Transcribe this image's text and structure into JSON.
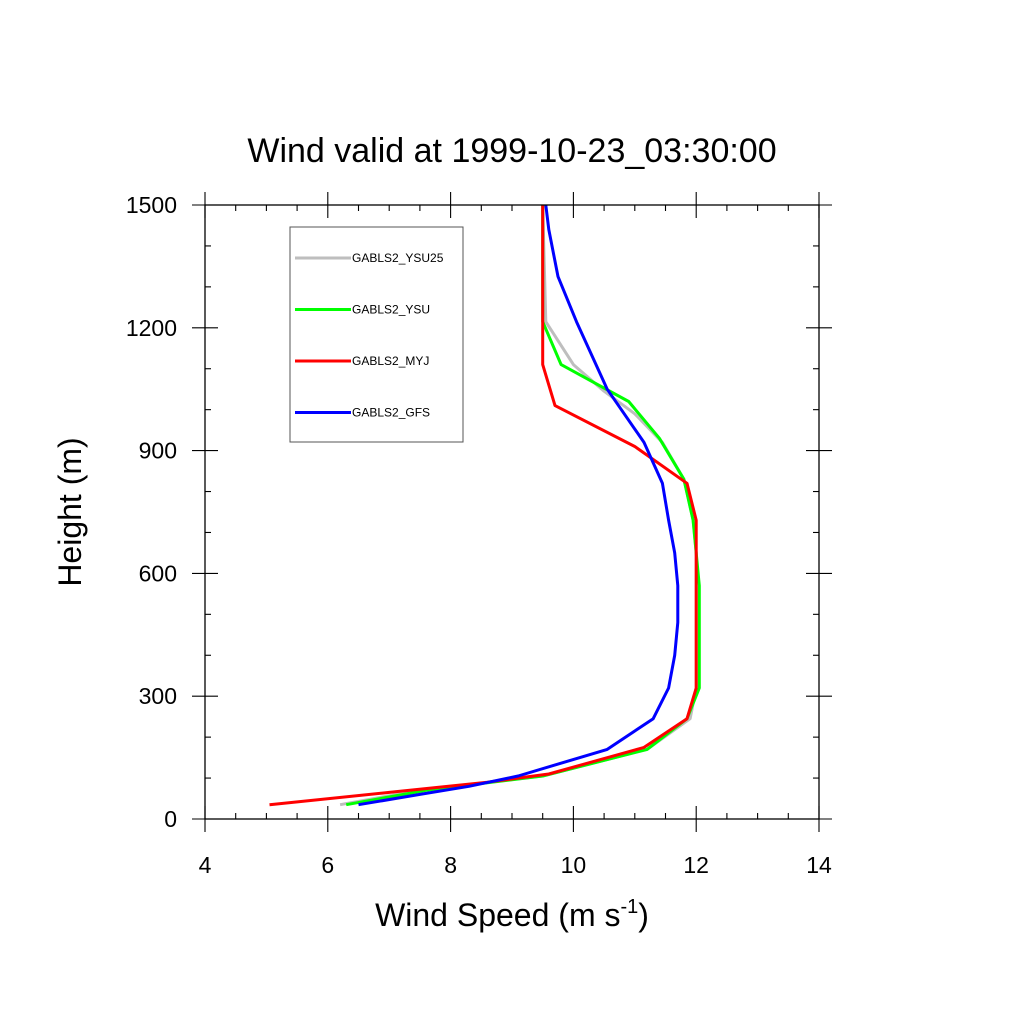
{
  "chart_data": {
    "type": "line",
    "title": "Wind valid at 1999-10-23_03:30:00",
    "xlabel": "Wind Speed (m s",
    "xlabel_sup": "-1",
    "xlabel_end": ")",
    "ylabel": "Height (m)",
    "xlim": [
      4,
      14
    ],
    "ylim": [
      0,
      1500
    ],
    "x_ticks": [
      4,
      6,
      8,
      10,
      12,
      14
    ],
    "y_ticks": [
      0,
      300,
      600,
      900,
      1200,
      1500
    ],
    "x_tick_labels": [
      "4",
      "6",
      "8",
      "10",
      "12",
      "14"
    ],
    "y_tick_labels": [
      "0",
      "300",
      "600",
      "900",
      "1200",
      "1500"
    ],
    "grid": false,
    "legend_position": "top-left",
    "series": [
      {
        "name": "GABLS2_YSU25",
        "color": "#bebebe",
        "points": [
          [
            6.2,
            35
          ],
          [
            7.5,
            70
          ],
          [
            9.5,
            105
          ],
          [
            11.2,
            170
          ],
          [
            11.9,
            245
          ],
          [
            12.0,
            320
          ],
          [
            12.0,
            400
          ],
          [
            12.0,
            480
          ],
          [
            12.0,
            570
          ],
          [
            12.0,
            650
          ],
          [
            11.95,
            730
          ],
          [
            11.8,
            830
          ],
          [
            11.45,
            920
          ],
          [
            11.0,
            990
          ],
          [
            10.5,
            1045
          ],
          [
            10.0,
            1110
          ],
          [
            9.55,
            1215
          ],
          [
            9.5,
            1500
          ]
        ]
      },
      {
        "name": "GABLS2_YSU",
        "color": "#00ff00",
        "points": [
          [
            6.3,
            35
          ],
          [
            7.6,
            70
          ],
          [
            9.5,
            105
          ],
          [
            11.2,
            170
          ],
          [
            11.85,
            245
          ],
          [
            12.05,
            320
          ],
          [
            12.05,
            400
          ],
          [
            12.05,
            480
          ],
          [
            12.05,
            570
          ],
          [
            12.0,
            650
          ],
          [
            11.95,
            730
          ],
          [
            11.8,
            830
          ],
          [
            11.4,
            930
          ],
          [
            10.9,
            1020
          ],
          [
            9.8,
            1110
          ],
          [
            9.5,
            1215
          ],
          [
            9.5,
            1500
          ]
        ]
      },
      {
        "name": "GABLS2_MYJ",
        "color": "#ff0000",
        "points": [
          [
            5.05,
            35
          ],
          [
            7.0,
            65
          ],
          [
            8.6,
            90
          ],
          [
            9.6,
            110
          ],
          [
            11.15,
            175
          ],
          [
            11.85,
            245
          ],
          [
            12.0,
            320
          ],
          [
            12.0,
            400
          ],
          [
            12.0,
            480
          ],
          [
            12.0,
            570
          ],
          [
            12.0,
            650
          ],
          [
            12.0,
            730
          ],
          [
            11.85,
            820
          ],
          [
            11.0,
            910
          ],
          [
            9.7,
            1010
          ],
          [
            9.5,
            1110
          ],
          [
            9.5,
            1500
          ]
        ]
      },
      {
        "name": "GABLS2_GFS",
        "color": "#0000ff",
        "points": [
          [
            6.5,
            35
          ],
          [
            7.5,
            60
          ],
          [
            8.3,
            80
          ],
          [
            9.1,
            105
          ],
          [
            10.55,
            170
          ],
          [
            11.3,
            245
          ],
          [
            11.55,
            320
          ],
          [
            11.65,
            400
          ],
          [
            11.7,
            480
          ],
          [
            11.7,
            570
          ],
          [
            11.65,
            650
          ],
          [
            11.55,
            730
          ],
          [
            11.45,
            820
          ],
          [
            11.15,
            920
          ],
          [
            10.55,
            1050
          ],
          [
            10.05,
            1215
          ],
          [
            9.75,
            1325
          ],
          [
            9.6,
            1440
          ],
          [
            9.55,
            1500
          ]
        ]
      }
    ]
  }
}
